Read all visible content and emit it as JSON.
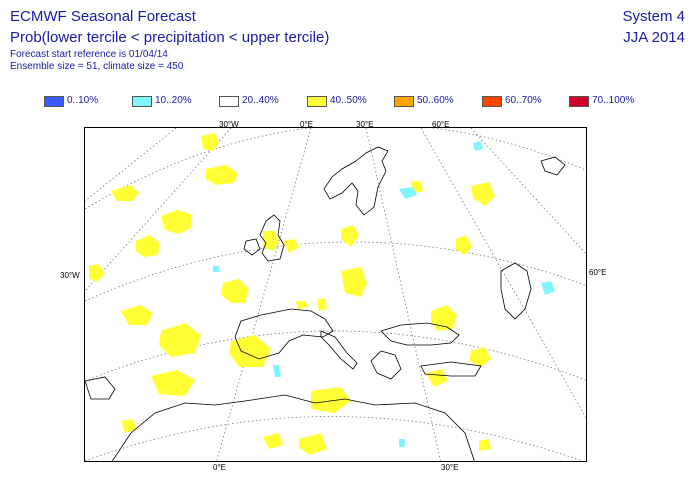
{
  "header": {
    "title_line1": "ECMWF Seasonal Forecast",
    "title_line2": "Prob(lower tercile < precipitation < upper tercile)",
    "subtitle_line1": "Forecast start reference is 01/04/14",
    "subtitle_line2": "Ensemble size = 51, climate size = 450",
    "system": "System 4",
    "season": "JJA 2014"
  },
  "legend": [
    {
      "label": "0..10%",
      "color": "#3a5bff"
    },
    {
      "label": "10..20%",
      "color": "#7ff6ff"
    },
    {
      "label": "20..40%",
      "color": "#ffffff"
    },
    {
      "label": "40..50%",
      "color": "#ffff33"
    },
    {
      "label": "50..60%",
      "color": "#ffa500"
    },
    {
      "label": "60..70%",
      "color": "#ff4500"
    },
    {
      "label": "70..100%",
      "color": "#d0002a"
    }
  ],
  "map": {
    "grid_labels": {
      "top_30w": "30°W",
      "top_0e": "0°E",
      "top_30e": "30°E",
      "top_60e": "60°E",
      "left_30w": "30°W",
      "right_60e": "60°E",
      "bottom_0e": "0°E",
      "bottom_30e": "30°E"
    }
  }
}
